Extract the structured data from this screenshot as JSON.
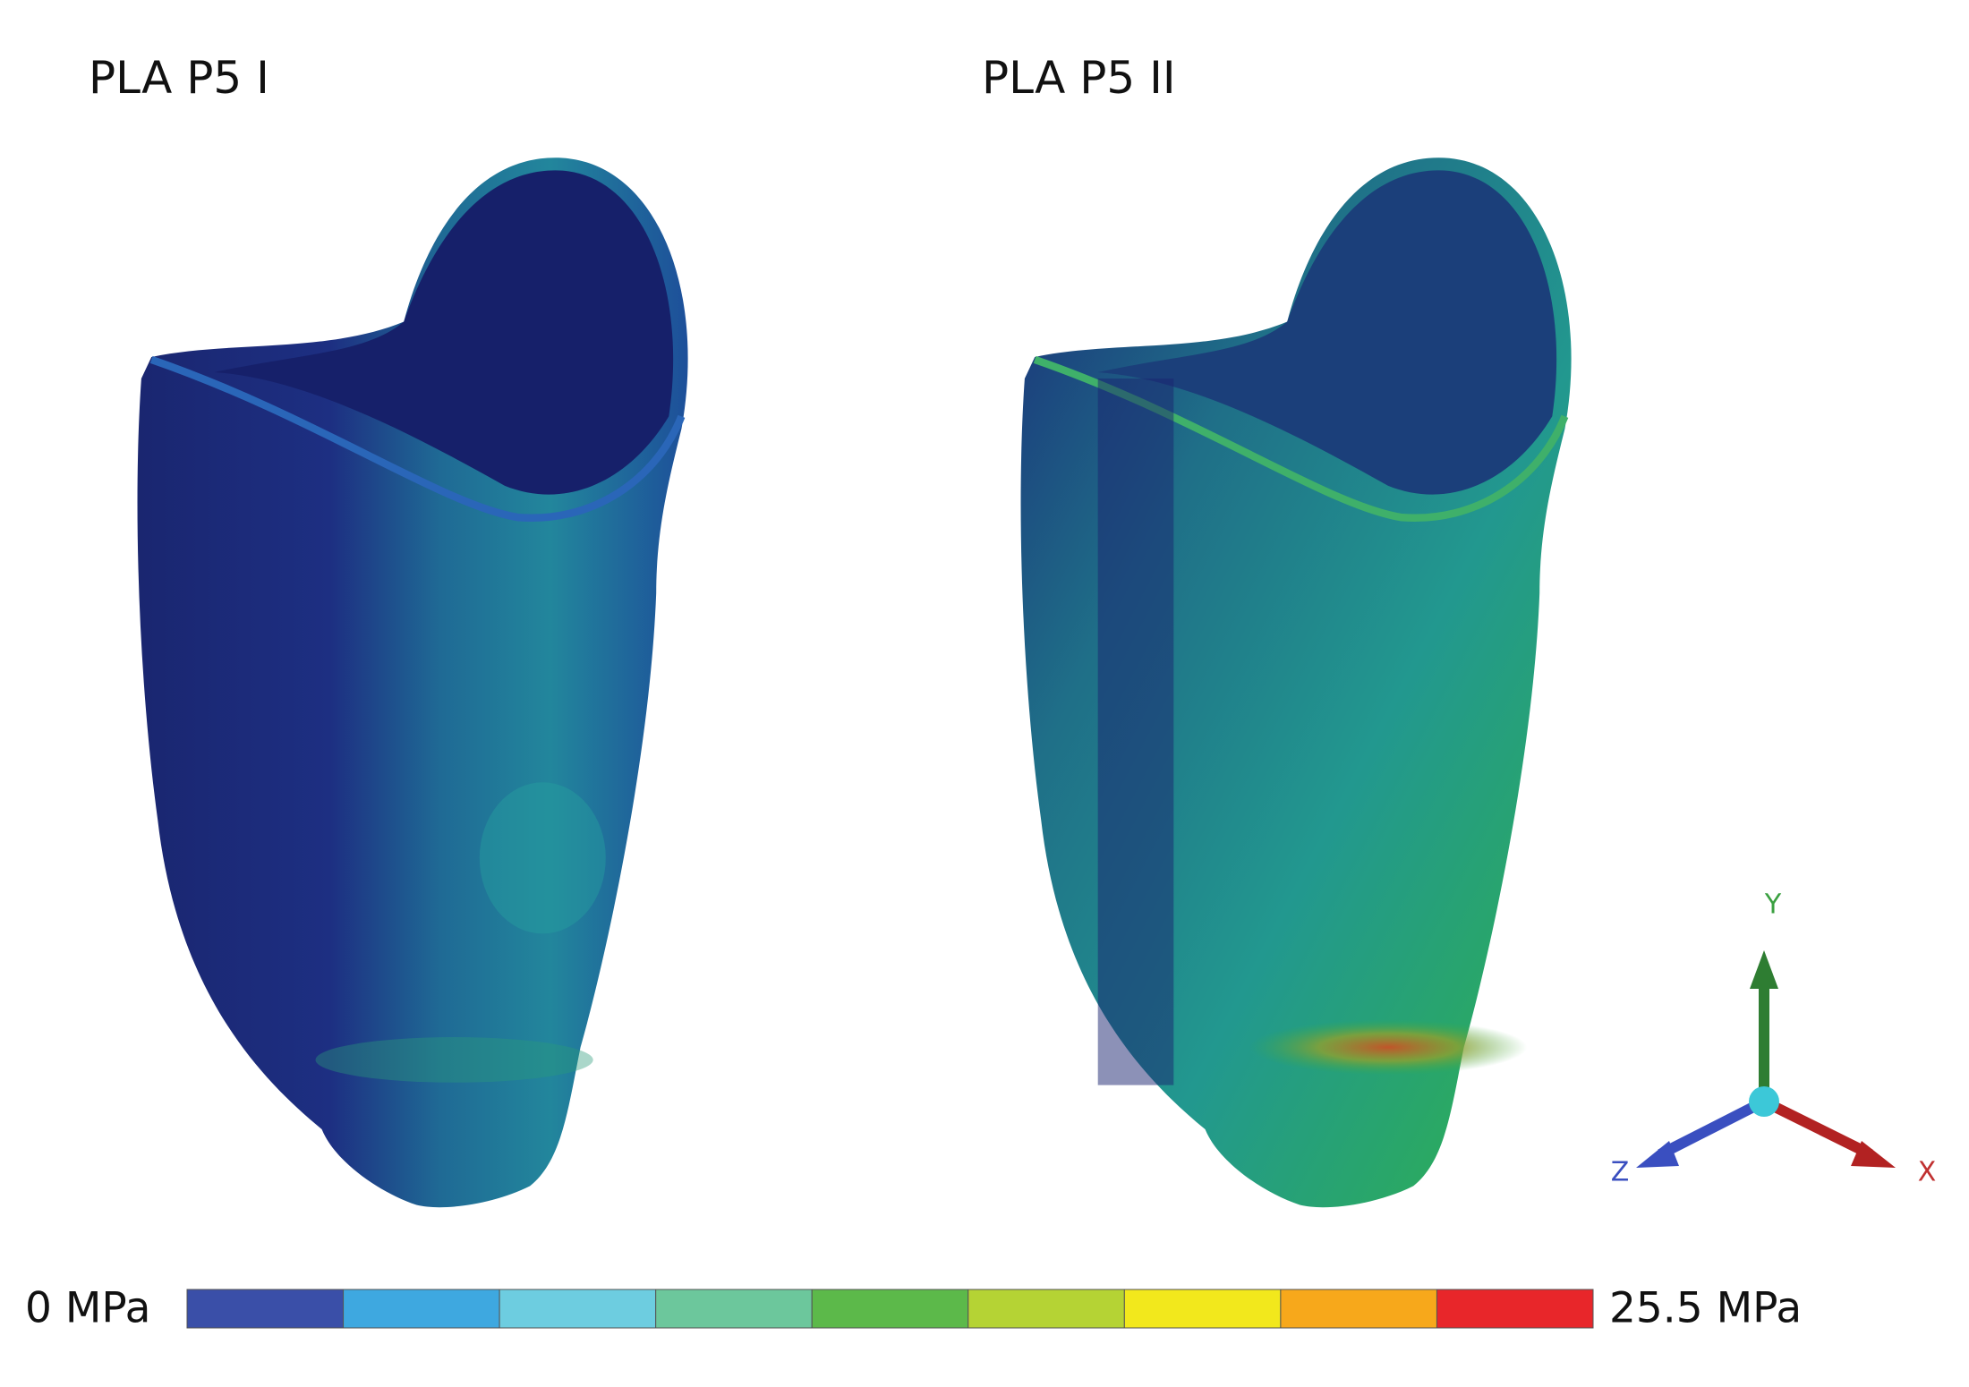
{
  "panels": [
    {
      "title": "PLA P5 I"
    },
    {
      "title": "PLA P5 II"
    }
  ],
  "scale": {
    "min_label": "0 MPa",
    "max_label": "25.5 MPa",
    "colors": [
      "#3a4fa8",
      "#3ea8e0",
      "#6dcde0",
      "#6cc79c",
      "#5cb94a",
      "#b5d334",
      "#f2e81c",
      "#f7a81b",
      "#e8262a"
    ]
  },
  "axes": {
    "y": "Y",
    "x": "X",
    "z": "Z"
  }
}
